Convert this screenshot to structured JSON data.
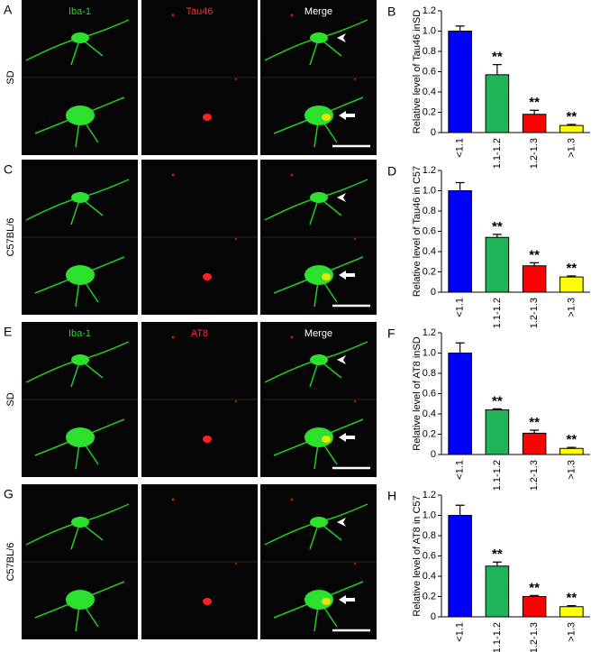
{
  "figure": {
    "rows": [
      {
        "letter": "A",
        "label": "SD",
        "headers": [
          "Iba-1",
          "Tau46",
          "Merge"
        ]
      },
      {
        "letter": "C",
        "label": "C57BL/6"
      },
      {
        "letter": "E",
        "label": "SD",
        "headers": [
          "Iba-1",
          "AT8",
          "Merge"
        ]
      },
      {
        "letter": "G",
        "label": "C57BL/6"
      }
    ]
  },
  "chart_data": [
    {
      "type": "bar",
      "panel": "B",
      "ylabel": "Relative level of Tau46 inSD",
      "categories": [
        "<1.1",
        "1.1-1.2",
        "1.2-1.3",
        ">1.3"
      ],
      "values": [
        1.0,
        0.57,
        0.18,
        0.07
      ],
      "errors": [
        0.05,
        0.1,
        0.04,
        0.01
      ],
      "annotations": [
        null,
        "**",
        "**",
        "**"
      ],
      "colors": [
        "#0000ff",
        "#1fb45a",
        "#ff0000",
        "#ffff00"
      ],
      "ylim": [
        0,
        1.2
      ],
      "yticks": [
        0,
        0.2,
        0.4,
        0.6,
        0.8,
        {
          "value": 1,
          "label": "1.0"
        },
        1.2
      ]
    },
    {
      "type": "bar",
      "panel": "D",
      "ylabel": "Relative level of Tau46 in C57",
      "categories": [
        "<1.1",
        "1.1-1.2",
        "1.2-1.3",
        ">1.3"
      ],
      "values": [
        1.0,
        0.54,
        0.26,
        0.15
      ],
      "errors": [
        0.08,
        0.03,
        0.03,
        0.01
      ],
      "annotations": [
        null,
        "**",
        "**",
        "**"
      ],
      "colors": [
        "#0000ff",
        "#1fb45a",
        "#ff0000",
        "#ffff00"
      ],
      "ylim": [
        0,
        1.2
      ],
      "yticks": [
        0,
        0.2,
        0.4,
        0.6,
        0.8,
        {
          "value": 1,
          "label": "1.0"
        },
        1.2
      ]
    },
    {
      "type": "bar",
      "panel": "F",
      "ylabel": "Relative level of AT8 inSD",
      "categories": [
        "<1.1",
        "1.1-1.2",
        "1.2-1.3",
        ">1.3"
      ],
      "values": [
        1.0,
        0.44,
        0.21,
        0.06
      ],
      "errors": [
        0.1,
        0.01,
        0.03,
        0.01
      ],
      "annotations": [
        null,
        "**",
        "**",
        "**"
      ],
      "colors": [
        "#0000ff",
        "#1fb45a",
        "#ff0000",
        "#ffff00"
      ],
      "ylim": [
        0,
        1.2
      ],
      "yticks": [
        0,
        0.2,
        0.4,
        0.6,
        0.8,
        {
          "value": 1,
          "label": "1.0"
        },
        1.2
      ]
    },
    {
      "type": "bar",
      "panel": "H",
      "ylabel": "Relative level of AT8 in C57",
      "categories": [
        "<1.1",
        "1.1-1.2",
        "1.2-1.3",
        ">1.3"
      ],
      "values": [
        1.0,
        0.5,
        0.2,
        0.1
      ],
      "errors": [
        0.1,
        0.04,
        0.01,
        0.01
      ],
      "annotations": [
        null,
        "**",
        "**",
        "**"
      ],
      "colors": [
        "#0000ff",
        "#1fb45a",
        "#ff0000",
        "#ffff00"
      ],
      "ylim": [
        0,
        1.2
      ],
      "yticks": [
        0,
        0.2,
        0.4,
        0.6,
        0.8,
        {
          "value": 1,
          "label": "1.0"
        },
        1.2
      ]
    }
  ]
}
